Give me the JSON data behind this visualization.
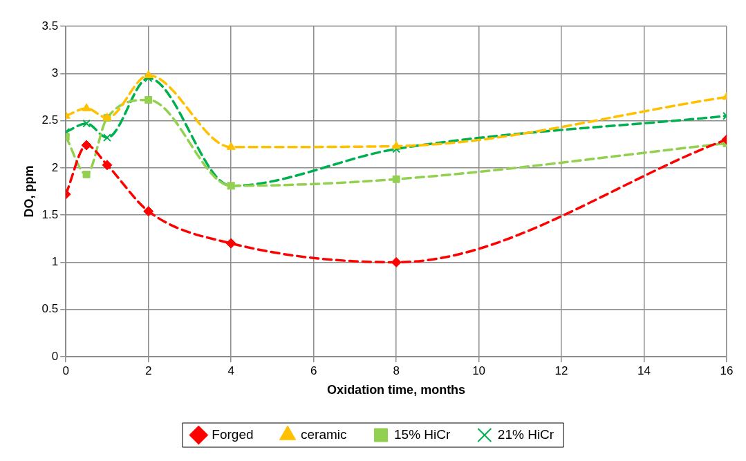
{
  "chart_data": {
    "type": "line",
    "xlabel": "Oxidation time, months",
    "ylabel": "DO, ppm",
    "x": [
      0,
      0.5,
      1,
      2,
      4,
      8,
      16
    ],
    "series": [
      {
        "name": "Forged",
        "color": "#ff0000",
        "marker": "diamond",
        "values": [
          1.72,
          2.24,
          2.03,
          1.54,
          1.2,
          1.0,
          2.3
        ]
      },
      {
        "name": "ceramic",
        "color": "#ffc000",
        "marker": "triangle",
        "values": [
          2.55,
          2.63,
          2.53,
          2.98,
          2.22,
          2.23,
          2.75
        ]
      },
      {
        "name": "15% HiCr",
        "color": "#92d050",
        "marker": "square",
        "values": [
          2.33,
          1.93,
          2.53,
          2.72,
          1.81,
          1.88,
          2.26
        ]
      },
      {
        "name": "21% HiCr",
        "color": "#00b050",
        "marker": "cross",
        "values": [
          2.38,
          2.47,
          2.32,
          2.95,
          1.81,
          2.2,
          2.55
        ]
      }
    ],
    "xlim": [
      0,
      16
    ],
    "xticks": [
      0,
      2,
      4,
      6,
      8,
      10,
      12,
      14,
      16
    ],
    "ylim": [
      0,
      3.5
    ],
    "yticks": [
      0,
      0.5,
      1,
      1.5,
      2,
      2.5,
      3,
      3.5
    ],
    "grid": true,
    "legend": "bottom",
    "line_style": "dashed"
  }
}
